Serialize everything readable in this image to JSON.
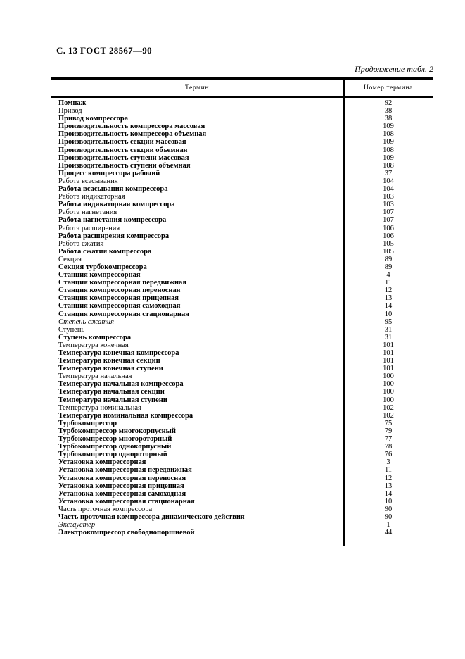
{
  "page": {
    "header": "С. 13 ГОСТ 28567—90",
    "continuation": "Продолжение табл. 2"
  },
  "table": {
    "columns": [
      "Термин",
      "Номер термина"
    ],
    "rows": [
      {
        "term": "Помпаж",
        "num": "92",
        "style": "b"
      },
      {
        "term": "Привод",
        "num": "38",
        "style": "r"
      },
      {
        "term": "Привод компрессора",
        "num": "38",
        "style": "b"
      },
      {
        "term": "Производительность компрессора массовая",
        "num": "109",
        "style": "b"
      },
      {
        "term": "Производительность компрессора объемная",
        "num": "108",
        "style": "b"
      },
      {
        "term": "Производительность секции массовая",
        "num": "109",
        "style": "b"
      },
      {
        "term": "Производительность секции объемная",
        "num": "108",
        "style": "b"
      },
      {
        "term": "Производительность ступени массовая",
        "num": "109",
        "style": "b"
      },
      {
        "term": "Производительность ступени объемная",
        "num": "108",
        "style": "b"
      },
      {
        "term": "Процесс компрессора рабочий",
        "num": "37",
        "style": "b"
      },
      {
        "term": "Работа всасывания",
        "num": "104",
        "style": "r"
      },
      {
        "term": "Работа всасывания компрессора",
        "num": "104",
        "style": "b"
      },
      {
        "term": "Работа индикаторная",
        "num": "103",
        "style": "r"
      },
      {
        "term": "Работа индикаторная компрессора",
        "num": "103",
        "style": "b"
      },
      {
        "term": "Работа нагнетания",
        "num": "107",
        "style": "r"
      },
      {
        "term": "Работа нагнетания компрессора",
        "num": "107",
        "style": "b"
      },
      {
        "term": "Работа расширения",
        "num": "106",
        "style": "r"
      },
      {
        "term": "Работа расширения компрессора",
        "num": "106",
        "style": "b"
      },
      {
        "term": "Работа сжатия",
        "num": "105",
        "style": "r"
      },
      {
        "term": "Работа сжатия компрессора",
        "num": "105",
        "style": "b"
      },
      {
        "term": "Секция",
        "num": "89",
        "style": "r"
      },
      {
        "term": "Секция турбокомпрессора",
        "num": "89",
        "style": "b"
      },
      {
        "term": "Станция компрессорная",
        "num": "4",
        "style": "b"
      },
      {
        "term": "Станция компрессорная передвижная",
        "num": "11",
        "style": "b"
      },
      {
        "term": "Станция компрессорная переносная",
        "num": "12",
        "style": "b"
      },
      {
        "term": "Станция компрессорная прицепная",
        "num": "13",
        "style": "b"
      },
      {
        "term": "Станция компрессорная самоходная",
        "num": "14",
        "style": "b"
      },
      {
        "term": "Станция компрессорная стационарная",
        "num": "10",
        "style": "b"
      },
      {
        "term": "Степень сжатия",
        "num": "95",
        "style": "i"
      },
      {
        "term": "Ступень",
        "num": "31",
        "style": "r"
      },
      {
        "term": "Ступень компрессора",
        "num": "31",
        "style": "b"
      },
      {
        "term": "Температура конечная",
        "num": "101",
        "style": "r"
      },
      {
        "term": "Температура конечная компрессора",
        "num": "101",
        "style": "b"
      },
      {
        "term": "Температура конечная секции",
        "num": "101",
        "style": "b"
      },
      {
        "term": "Температура конечная ступени",
        "num": "101",
        "style": "b"
      },
      {
        "term": "Температура начальная",
        "num": "100",
        "style": "r"
      },
      {
        "term": "Температура начальная компрессора",
        "num": "100",
        "style": "b"
      },
      {
        "term": "Температура начальная секции",
        "num": "100",
        "style": "b"
      },
      {
        "term": "Температура начальная ступени",
        "num": "100",
        "style": "b"
      },
      {
        "term": "Температура номинальная",
        "num": "102",
        "style": "r"
      },
      {
        "term": "Температура номинальная компрессора",
        "num": "102",
        "style": "b"
      },
      {
        "term": "Турбокомпрессор",
        "num": "75",
        "style": "b"
      },
      {
        "term": "Турбокомпрессор многокорпусный",
        "num": "79",
        "style": "b"
      },
      {
        "term": "Турбокомпрессор многороторный",
        "num": "77",
        "style": "b"
      },
      {
        "term": "Турбокомпрессор однокорпусный",
        "num": "78",
        "style": "b"
      },
      {
        "term": "Турбокомпрессор однороторный",
        "num": "76",
        "style": "b"
      },
      {
        "term": "Установка компрессорная",
        "num": "3",
        "style": "b"
      },
      {
        "term": "Установка компрессорная передвижная",
        "num": "11",
        "style": "b"
      },
      {
        "term": "Установка компрессорная переносная",
        "num": "12",
        "style": "b"
      },
      {
        "term": "Установка компрессорная прицепная",
        "num": "13",
        "style": "b"
      },
      {
        "term": "Установка компрессорная самоходная",
        "num": "14",
        "style": "b"
      },
      {
        "term": "Установка компрессорная стационарная",
        "num": "10",
        "style": "b"
      },
      {
        "term": "Часть проточная компрессора",
        "num": "90",
        "style": "r"
      },
      {
        "term": "Часть проточная компрессора динамического действия",
        "num": "90",
        "style": "b"
      },
      {
        "term": "Эксгаустер",
        "num": "1",
        "style": "i"
      },
      {
        "term": "Электрокомпрессор свободнопоршневой",
        "num": "44",
        "style": "b"
      }
    ]
  }
}
